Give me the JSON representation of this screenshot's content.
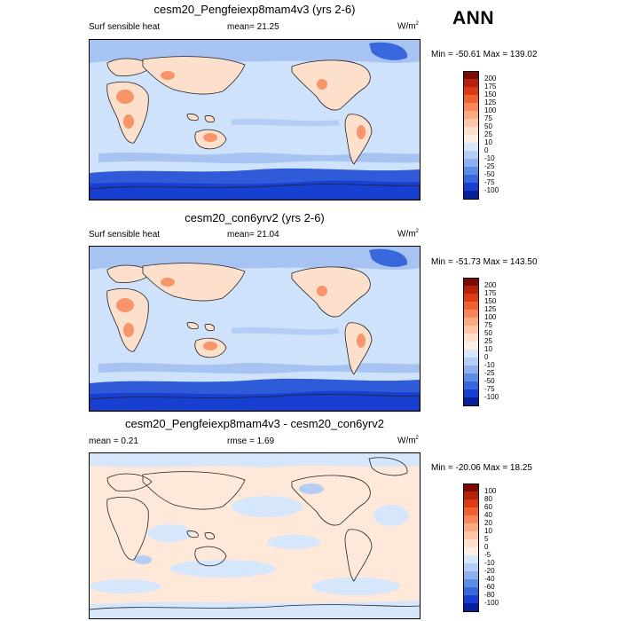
{
  "season_label": "ANN",
  "panels": [
    {
      "title": "cesm20_Pengfeiexp8mam4v3 (yrs 2-6)",
      "left_label": "Surf sensible heat",
      "mid_label": "mean=  21.25",
      "units": "W/m",
      "units_sup": "2",
      "minmax": "Min = -50.61 Max = 139.02",
      "colorbar_labels": [
        "200",
        "175",
        "150",
        "125",
        "100",
        "75",
        "50",
        "25",
        "10",
        "0",
        "-10",
        "-25",
        "-50",
        "-75",
        "-100"
      ],
      "colorbar_colors": [
        "#7a0a03",
        "#b5210a",
        "#dc3a12",
        "#ef6230",
        "#f7875a",
        "#fba97f",
        "#fdc6a7",
        "#fde0cc",
        "#fdeee4",
        "#d7e7fb",
        "#b3cdf5",
        "#8db0ee",
        "#5d8de4",
        "#3868dc",
        "#1740d3",
        "#0a1f9a"
      ]
    },
    {
      "title": "cesm20_con6yrv2 (yrs 2-6)",
      "left_label": "Surf sensible heat",
      "mid_label": "mean=  21.04",
      "units": "W/m",
      "units_sup": "2",
      "minmax": "Min = -51.73 Max = 143.50",
      "colorbar_labels": [
        "200",
        "175",
        "150",
        "125",
        "100",
        "75",
        "50",
        "25",
        "10",
        "0",
        "-10",
        "-25",
        "-50",
        "-75",
        "-100"
      ],
      "colorbar_colors": [
        "#7a0a03",
        "#b5210a",
        "#dc3a12",
        "#ef6230",
        "#f7875a",
        "#fba97f",
        "#fdc6a7",
        "#fde0cc",
        "#fdeee4",
        "#d7e7fb",
        "#b3cdf5",
        "#8db0ee",
        "#5d8de4",
        "#3868dc",
        "#1740d3",
        "#0a1f9a"
      ]
    },
    {
      "title": "cesm20_Pengfeiexp8mam4v3 - cesm20_con6yrv2",
      "left_label": "mean =   0.21",
      "mid_label": "rmse =    1.69",
      "units": "W/m",
      "units_sup": "2",
      "minmax": "Min = -20.06 Max =  18.25",
      "colorbar_labels": [
        "100",
        "80",
        "60",
        "40",
        "20",
        "10",
        "5",
        "0",
        "-5",
        "-10",
        "-20",
        "-40",
        "-60",
        "-80",
        "-100"
      ],
      "colorbar_colors": [
        "#7a0a03",
        "#b5210a",
        "#dc3a12",
        "#ef6230",
        "#f7875a",
        "#fba97f",
        "#fdc6a7",
        "#fde0cc",
        "#fdeee4",
        "#d7e7fb",
        "#b3cdf5",
        "#8db0ee",
        "#5d8de4",
        "#3868dc",
        "#1740d3",
        "#0a1f9a"
      ]
    }
  ],
  "chart_data": [
    {
      "type": "heatmap",
      "title": "cesm20_Pengfeiexp8mam4v3 (yrs 2-6)",
      "variable": "Surf sensible heat",
      "units": "W/m2",
      "mean": 21.25,
      "min": -50.61,
      "max": 139.02,
      "contour_levels": [
        -100,
        -75,
        -50,
        -25,
        -10,
        0,
        10,
        25,
        50,
        75,
        100,
        125,
        150,
        175,
        200
      ]
    },
    {
      "type": "heatmap",
      "title": "cesm20_con6yrv2 (yrs 2-6)",
      "variable": "Surf sensible heat",
      "units": "W/m2",
      "mean": 21.04,
      "min": -51.73,
      "max": 143.5,
      "contour_levels": [
        -100,
        -75,
        -50,
        -25,
        -10,
        0,
        10,
        25,
        50,
        75,
        100,
        125,
        150,
        175,
        200
      ]
    },
    {
      "type": "heatmap",
      "title": "cesm20_Pengfeiexp8mam4v3 - cesm20_con6yrv2",
      "units": "W/m2",
      "mean": 0.21,
      "rmse": 1.69,
      "min": -20.06,
      "max": 18.25,
      "contour_levels": [
        -100,
        -80,
        -60,
        -40,
        -20,
        -10,
        -5,
        0,
        5,
        10,
        20,
        40,
        60,
        80,
        100
      ]
    }
  ]
}
